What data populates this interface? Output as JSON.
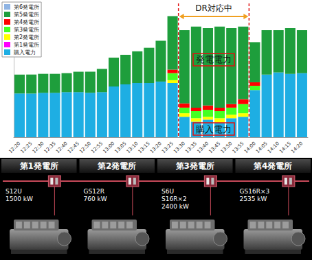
{
  "chart_data": {
    "type": "bar",
    "stacked": true,
    "grid": false,
    "legend": "upper left",
    "tick_labels": "x",
    "categories": [
      "12:20",
      "12:25",
      "12:30",
      "12:35",
      "12:40",
      "12:45",
      "12:50",
      "12:55",
      "13:00",
      "13:05",
      "13:10",
      "13:15",
      "13:20",
      "13:25",
      "13:30",
      "13:35",
      "13:40",
      "13:45",
      "13:50",
      "13:55",
      "14:00",
      "14:05",
      "14:10",
      "14:15",
      "14:20"
    ],
    "series": [
      {
        "name": "購入電力",
        "color": "#1eaee3",
        "values": [
          62,
          62,
          63,
          63,
          64,
          64,
          63,
          64,
          72,
          75,
          77,
          77,
          79,
          77,
          29,
          22,
          25,
          21,
          27,
          29,
          67,
          89,
          92,
          90,
          91
        ]
      },
      {
        "name": "第1発電所",
        "color": "#ff00ff",
        "values": [
          0,
          0,
          0,
          0,
          0,
          0,
          0,
          0,
          0,
          0,
          0,
          0,
          0,
          0,
          0,
          0,
          0,
          0,
          0,
          0,
          0,
          0,
          0,
          0,
          0
        ]
      },
      {
        "name": "第2発電所",
        "color": "#ffff00",
        "values": [
          0,
          0,
          0,
          0,
          0,
          0,
          0,
          0,
          0,
          0,
          0,
          0,
          0,
          4,
          5,
          5,
          4,
          6,
          5,
          5,
          0,
          0,
          0,
          0,
          0
        ]
      },
      {
        "name": "第3発電所",
        "color": "#44ff22",
        "values": [
          0,
          0,
          0,
          0,
          0,
          0,
          0,
          0,
          0,
          0,
          0,
          0,
          0,
          10,
          8,
          10,
          10,
          10,
          10,
          13,
          6,
          0,
          0,
          0,
          0
        ]
      },
      {
        "name": "第4発電所",
        "color": "#ff0000",
        "values": [
          0,
          0,
          0,
          0,
          0,
          0,
          0,
          0,
          0,
          0,
          0,
          0,
          0,
          5,
          6,
          5,
          6,
          5,
          5,
          7,
          5,
          0,
          0,
          0,
          0
        ]
      },
      {
        "name": "第5発電所",
        "color": "#1e9e3c",
        "values": [
          27,
          27,
          27,
          27,
          27,
          29,
          30,
          33,
          41,
          42,
          45,
          50,
          58,
          76,
          104,
          115,
          110,
          115,
          108,
          103,
          57,
          63,
          60,
          65,
          61
        ]
      },
      {
        "name": "第6発電所",
        "color": "#8fb4e3",
        "values": [
          0,
          0,
          0,
          0,
          0,
          0,
          0,
          0,
          0,
          0,
          0,
          0,
          0,
          0,
          0,
          0,
          0,
          0,
          0,
          0,
          0,
          0,
          0,
          0,
          0
        ]
      }
    ],
    "ylim": [
      0,
      190
    ],
    "yticks": [],
    "annotations": [
      {
        "text": "DR対応中",
        "start": "13:30",
        "end": "13:55"
      },
      {
        "text": "発電電力"
      },
      {
        "text": "購入電力"
      }
    ]
  },
  "diagram": {
    "stations": [
      {
        "name": "第1発電所",
        "units": [
          "S12U"
        ],
        "capacity": "1500 kW"
      },
      {
        "name": "第2発電所",
        "units": [
          "GS12R"
        ],
        "capacity": "760 kW"
      },
      {
        "name": "第3発電所",
        "units": [
          "S6U",
          "S16R×2"
        ],
        "capacity": "2400 kW"
      },
      {
        "name": "第4発電所",
        "units": [
          "GS16R×3"
        ],
        "capacity": "2535 kW"
      }
    ]
  }
}
